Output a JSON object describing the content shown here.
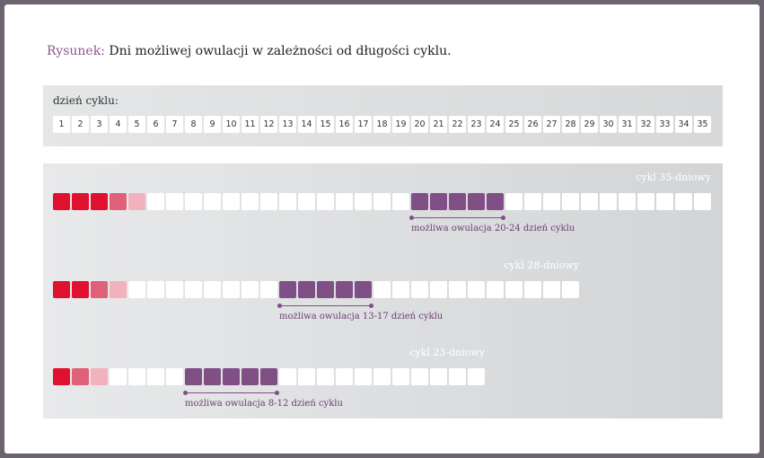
{
  "title": {
    "prefix": "Rysunek:",
    "text": "Dni możliwej owulacji w zależności od długości cyklu."
  },
  "header": {
    "label": "dzień cyklu:",
    "days": [
      "1",
      "2",
      "3",
      "4",
      "5",
      "6",
      "7",
      "8",
      "9",
      "10",
      "11",
      "12",
      "13",
      "14",
      "15",
      "16",
      "17",
      "18",
      "19",
      "20",
      "21",
      "22",
      "23",
      "24",
      "25",
      "26",
      "27",
      "28",
      "29",
      "30",
      "31",
      "32",
      "33",
      "34",
      "35"
    ]
  },
  "colors": {
    "bleed_heavy": "#e0102f",
    "bleed_medium": "#e0607a",
    "bleed_light": "#f1b1bd",
    "ovulation": "#7f4f86",
    "empty": "#ffffff"
  },
  "cycles": [
    {
      "label": "cykl 35-dniowy",
      "length": 35,
      "bleeding": [
        "heavy",
        "heavy",
        "heavy",
        "medium",
        "light"
      ],
      "ovulation_start": 20,
      "ovulation_end": 24,
      "ovulation_label": "możliwa owulacja 20-24 dzień cyklu"
    },
    {
      "label": "cykl 28-dniowy",
      "length": 28,
      "bleeding": [
        "heavy",
        "heavy",
        "medium",
        "light"
      ],
      "ovulation_start": 13,
      "ovulation_end": 17,
      "ovulation_label": "możliwa owulacja 13-17 dzień cyklu"
    },
    {
      "label": "cykl 23-dniowy",
      "length": 23,
      "bleeding": [
        "heavy",
        "medium",
        "light"
      ],
      "ovulation_start": 8,
      "ovulation_end": 12,
      "ovulation_label": "możliwa owulacja 8-12 dzień cyklu"
    }
  ]
}
